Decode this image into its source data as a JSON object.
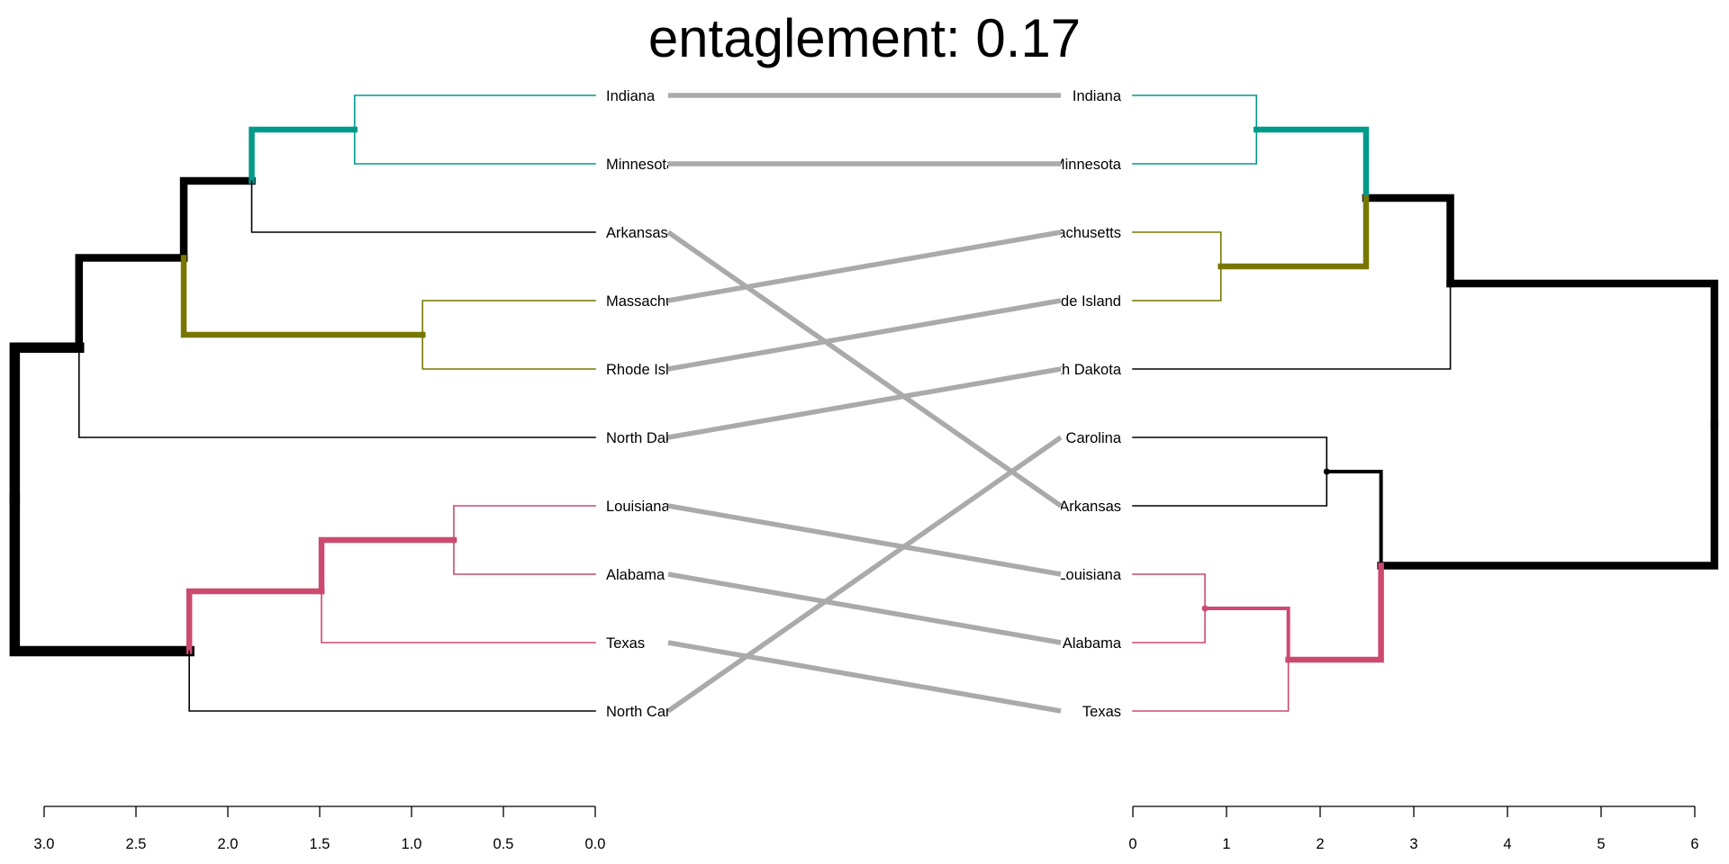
{
  "chart_data": {
    "type": "tanglegram",
    "title": "entaglement: 0.17",
    "colors": {
      "teal": "#009A8A",
      "olive": "#777700",
      "pink": "#CC4A70",
      "black": "#000000",
      "connector": "#AAAAAA"
    },
    "left_axis": {
      "range": [
        3.0,
        0.0
      ],
      "ticks": [
        "3.0",
        "2.5",
        "2.0",
        "1.5",
        "1.0",
        "0.5",
        "0.0"
      ],
      "tick_values": [
        3.0,
        2.5,
        2.0,
        1.5,
        1.0,
        0.5,
        0.0
      ]
    },
    "right_axis": {
      "range": [
        0,
        6
      ],
      "ticks": [
        "0",
        "1",
        "2",
        "3",
        "4",
        "5",
        "6"
      ],
      "tick_values": [
        0,
        1,
        2,
        3,
        4,
        5,
        6
      ]
    },
    "left_tree": {
      "h": 3.16,
      "children": [
        {
          "h": 2.81,
          "color": "black",
          "emphasis": 4,
          "children": [
            {
              "h": 2.24,
              "color": "black",
              "emphasis": 3,
              "children": [
                {
                  "h": 1.87,
                  "color": "black",
                  "emphasis": 3,
                  "children": [
                    {
                      "h": 1.31,
                      "color": "teal",
                      "emphasis": 2,
                      "children": [
                        {
                          "label": "Indiana",
                          "color": "teal"
                        },
                        {
                          "label": "Minnesota",
                          "color": "teal"
                        }
                      ]
                    },
                    {
                      "label": "Arkansas",
                      "color": "black"
                    }
                  ]
                },
                {
                  "h": 0.94,
                  "color": "olive",
                  "emphasis": 2,
                  "children": [
                    {
                      "label": "Massachusetts",
                      "color": "olive"
                    },
                    {
                      "label": "Rhode Island",
                      "color": "olive"
                    }
                  ]
                }
              ]
            },
            {
              "label": "North Dakota",
              "color": "black"
            }
          ]
        },
        {
          "h": 2.21,
          "color": "black",
          "emphasis": 4,
          "children": [
            {
              "h": 1.49,
              "color": "pink",
              "emphasis": 2,
              "children": [
                {
                  "h": 0.77,
                  "color": "pink",
                  "emphasis": 2,
                  "children": [
                    {
                      "label": "Louisiana",
                      "color": "pink"
                    },
                    {
                      "label": "Alabama",
                      "color": "pink"
                    }
                  ]
                },
                {
                  "label": "Texas",
                  "color": "pink"
                }
              ]
            },
            {
              "label": "North Carolina",
              "color": "black"
            }
          ]
        }
      ]
    },
    "right_tree": {
      "h": 6.21,
      "children": [
        {
          "h": 3.39,
          "color": "black",
          "emphasis": 3,
          "children": [
            {
              "h": 2.49,
              "color": "black",
              "emphasis": 3,
              "children": [
                {
                  "h": 1.32,
                  "color": "teal",
                  "emphasis": 2,
                  "children": [
                    {
                      "label": "Indiana",
                      "color": "teal"
                    },
                    {
                      "label": "Minnesota",
                      "color": "teal"
                    }
                  ]
                },
                {
                  "h": 0.94,
                  "color": "olive",
                  "emphasis": 2,
                  "children": [
                    {
                      "label": "Massachusetts",
                      "color": "olive"
                    },
                    {
                      "label": "Rhode Island",
                      "color": "olive"
                    }
                  ]
                }
              ]
            },
            {
              "label": "North Dakota",
              "color": "black"
            }
          ]
        },
        {
          "h": 2.65,
          "color": "black",
          "emphasis": 3,
          "children": [
            {
              "h": 2.07,
              "color": "black",
              "emphasis": 1,
              "children": [
                {
                  "label": "North Carolina",
                  "color": "black"
                },
                {
                  "label": "Arkansas",
                  "color": "black"
                }
              ]
            },
            {
              "h": 1.66,
              "color": "pink",
              "emphasis": 2,
              "children": [
                {
                  "h": 0.77,
                  "color": "pink",
                  "emphasis": 1,
                  "children": [
                    {
                      "label": "Louisiana",
                      "color": "pink"
                    },
                    {
                      "label": "Alabama",
                      "color": "pink"
                    }
                  ]
                },
                {
                  "label": "Texas",
                  "color": "pink"
                }
              ]
            }
          ]
        }
      ]
    }
  }
}
